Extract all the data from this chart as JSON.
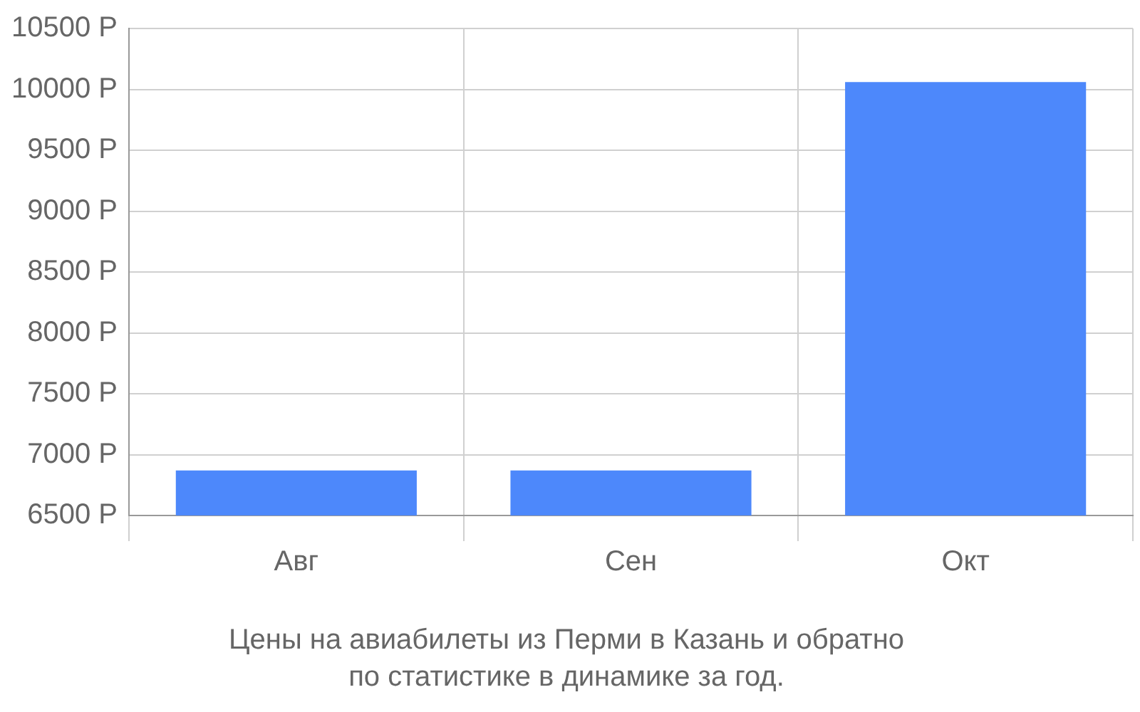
{
  "chart_data": {
    "type": "bar",
    "title": "Цены на авиабилеты из Перми в Казань и обратно",
    "subtitle": "по статистике в динамике за год.",
    "categories": [
      "Авг",
      "Сен",
      "Окт"
    ],
    "values": [
      6870,
      6870,
      10060
    ],
    "color": "#4d88fb",
    "ylim": [
      6500,
      10500
    ],
    "yticks": [
      {
        "value": 6500,
        "label": "6500 Р"
      },
      {
        "value": 7000,
        "label": "7000 Р"
      },
      {
        "value": 7500,
        "label": "7500 Р"
      },
      {
        "value": 8000,
        "label": "8000 Р"
      },
      {
        "value": 8500,
        "label": "8500 Р"
      },
      {
        "value": 9000,
        "label": "9000 Р"
      },
      {
        "value": 9500,
        "label": "9500 Р"
      },
      {
        "value": 10000,
        "label": "10000 Р"
      },
      {
        "value": 10500,
        "label": "10500 Р"
      }
    ],
    "grid": true
  }
}
